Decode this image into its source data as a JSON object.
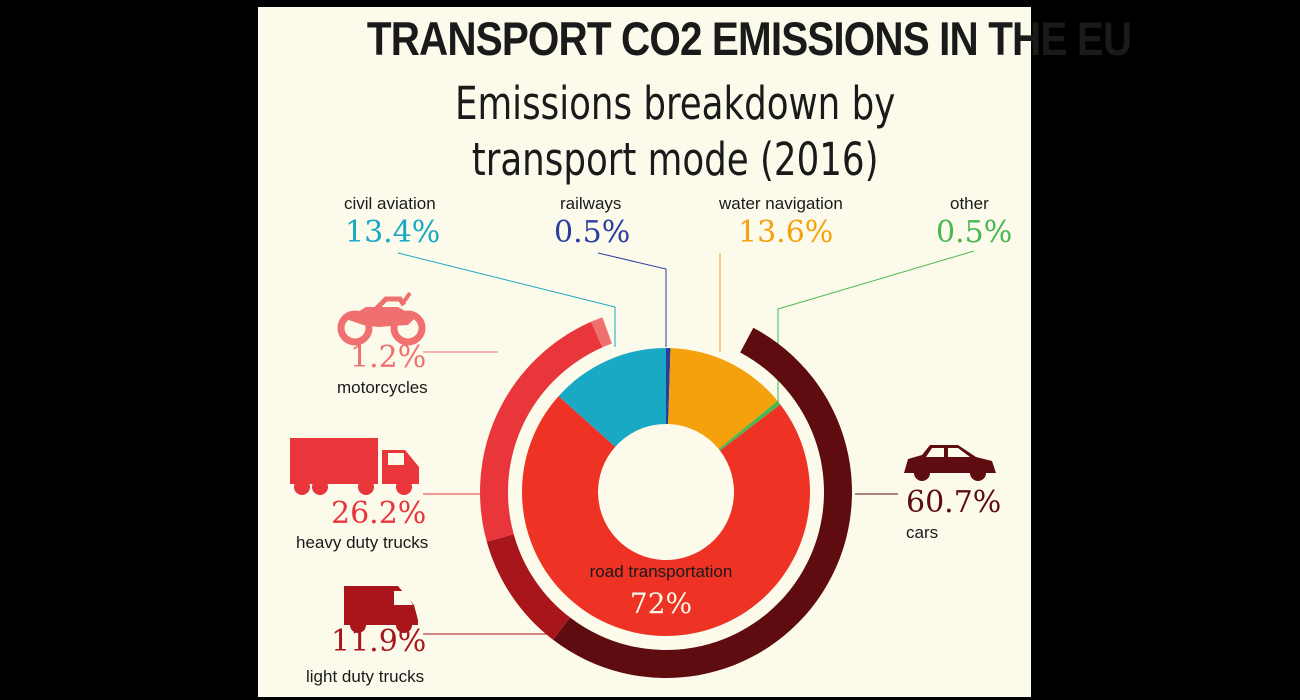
{
  "title": "TRANSPORT CO2 EMISSIONS IN THE EU",
  "subtitle_line1": "Emissions breakdown by",
  "subtitle_line2": "transport mode (2016)",
  "chart_data": {
    "type": "pie",
    "unit": "%",
    "inner_ring": [
      {
        "name": "civil aviation",
        "label": "13.4%",
        "value": 13.4,
        "color": "#19a9c4"
      },
      {
        "name": "railways",
        "label": "0.5%",
        "value": 0.5,
        "color": "#2b3ea0"
      },
      {
        "name": "water navigation",
        "label": "13.6%",
        "value": 13.6,
        "color": "#f5a10d"
      },
      {
        "name": "other",
        "label": "0.5%",
        "value": 0.5,
        "color": "#4ab850"
      },
      {
        "name": "road transportation",
        "label": "72%",
        "value": 72,
        "color": "#ee3224"
      }
    ],
    "outer_ring": [
      {
        "name": "cars",
        "label": "60.7%",
        "value": 60.7,
        "color": "#5e0c0f"
      },
      {
        "name": "light duty trucks",
        "label": "11.9%",
        "value": 11.9,
        "color": "#a8151a"
      },
      {
        "name": "heavy duty trucks",
        "label": "26.2%",
        "value": 26.2,
        "color": "#e8363a"
      },
      {
        "name": "motorcycles",
        "label": "1.2%",
        "value": 1.2,
        "color": "#f07070"
      }
    ],
    "icons": {
      "motorcycles": "motorcycle-icon",
      "heavy duty trucks": "truck-icon",
      "light duty trucks": "van-icon",
      "cars": "car-icon"
    }
  }
}
